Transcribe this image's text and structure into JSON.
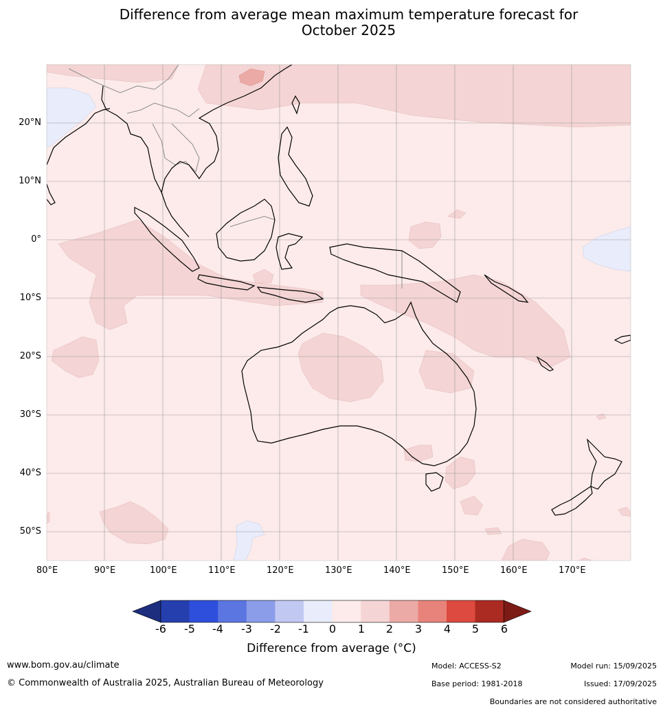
{
  "title": {
    "line1": "Difference from average mean maximum temperature forecast for",
    "line2": "October 2025"
  },
  "map": {
    "lat_labels": [
      "20°N",
      "10°N",
      "0°",
      "10°S",
      "20°S",
      "30°S",
      "40°S",
      "50°S"
    ],
    "lon_labels": [
      "80°E",
      "90°E",
      "100°E",
      "110°E",
      "120°E",
      "130°E",
      "140°E",
      "150°E",
      "160°E",
      "170°E"
    ],
    "extent": {
      "lon": [
        80,
        180
      ],
      "lat": [
        -55,
        30
      ]
    },
    "background_anomaly_bin": "0 to 1",
    "colors": {
      "bin_0_1": "#fcebea",
      "bin_1_2": "#f4d4d4",
      "bin_2_3": "#ecaaa6",
      "bin_neg1_0": "#e9ecfa",
      "coast": "#000000",
      "borders": "#8c8c8c",
      "grid": "#9a9a9a"
    }
  },
  "colorbar": {
    "label": "Difference from average (°C)",
    "ticks": [
      "-6",
      "-5",
      "-4",
      "-3",
      "-2",
      "-1",
      "0",
      "1",
      "2",
      "3",
      "4",
      "5",
      "6"
    ],
    "colors": [
      "#1c2e7d",
      "#263fae",
      "#2e4fdc",
      "#5c76e1",
      "#8b9de9",
      "#c1c9f3",
      "#e9ecfa",
      "#fcebea",
      "#f4d4d4",
      "#ecaaa6",
      "#e8837b",
      "#dd4a3f",
      "#ab2a21",
      "#7c1b16"
    ]
  },
  "footer": {
    "website": "www.bom.gov.au/climate",
    "copyright": "© Commonwealth of Australia 2025, Australian Bureau of Meteorology",
    "model": "Model: ACCESS-S2",
    "base_period": "Base period: 1981-2018",
    "model_run": "Model run: 15/09/2025",
    "issued": "Issued: 17/09/2025",
    "disclaimer": "Boundaries are not considered authoritative"
  }
}
